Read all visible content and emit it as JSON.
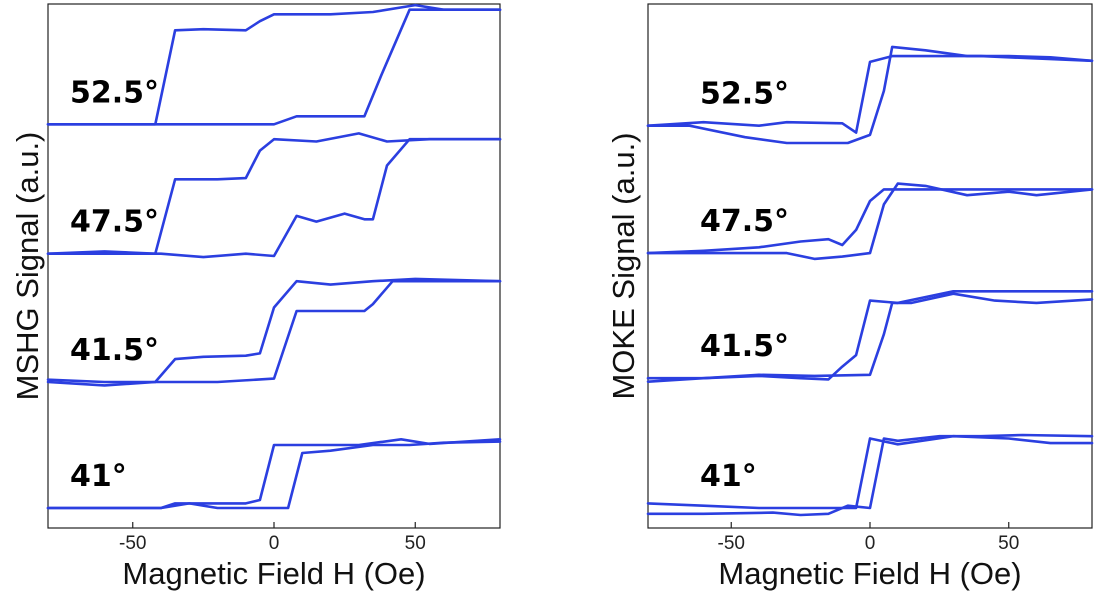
{
  "colors": {
    "trace": "#2b3fe0",
    "frame": "#222222"
  },
  "chart_data": [
    {
      "type": "line",
      "name": "mshg-panel",
      "xlabel": "Magnetic Field H (Oe)",
      "ylabel": "MSHG Signal (a.u.)",
      "xlim": [
        -80,
        80
      ],
      "ylim": [
        0,
        4.4
      ],
      "xticks": [
        -50,
        0,
        50
      ],
      "xtick_labels": [
        "-50",
        "0",
        "50"
      ],
      "yticks_shown": false,
      "grid": false,
      "series": [
        {
          "name": "52.5°",
          "offset": 3.35,
          "branches": [
            [
              [
                -80,
                0.0
              ],
              [
                -55,
                0.0
              ],
              [
                -42,
                0.0
              ],
              [
                -35,
                0.82
              ],
              [
                -25,
                0.83
              ],
              [
                -10,
                0.82
              ],
              [
                -5,
                0.9
              ],
              [
                0,
                0.96
              ],
              [
                20,
                0.96
              ],
              [
                35,
                0.98
              ],
              [
                50,
                1.04
              ],
              [
                60,
                1.0
              ],
              [
                80,
                1.0
              ]
            ],
            [
              [
                -80,
                0.0
              ],
              [
                -42,
                0.0
              ],
              [
                -20,
                0.0
              ],
              [
                0,
                0.0
              ],
              [
                8,
                0.07
              ],
              [
                20,
                0.07
              ],
              [
                32,
                0.07
              ],
              [
                38,
                0.43
              ],
              [
                48,
                1.0
              ],
              [
                80,
                1.0
              ]
            ]
          ]
        },
        {
          "name": "47.5°",
          "offset": 2.22,
          "branches": [
            [
              [
                -80,
                0.0
              ],
              [
                -60,
                0.02
              ],
              [
                -42,
                0.0
              ],
              [
                -35,
                0.65
              ],
              [
                -20,
                0.65
              ],
              [
                -10,
                0.66
              ],
              [
                -5,
                0.9
              ],
              [
                0,
                1.0
              ],
              [
                15,
                0.98
              ],
              [
                30,
                1.05
              ],
              [
                40,
                0.98
              ],
              [
                55,
                1.0
              ],
              [
                80,
                1.0
              ]
            ],
            [
              [
                -80,
                0.0
              ],
              [
                -55,
                0.0
              ],
              [
                -40,
                0.0
              ],
              [
                -25,
                -0.03
              ],
              [
                -10,
                0.0
              ],
              [
                0,
                -0.02
              ],
              [
                8,
                0.33
              ],
              [
                15,
                0.28
              ],
              [
                25,
                0.35
              ],
              [
                32,
                0.3
              ],
              [
                35,
                0.3
              ],
              [
                40,
                0.77
              ],
              [
                48,
                1.0
              ],
              [
                80,
                1.0
              ]
            ]
          ]
        },
        {
          "name": "41.5°",
          "offset": 1.1,
          "branches": [
            [
              [
                -80,
                0.0
              ],
              [
                -60,
                -0.03
              ],
              [
                -42,
                0.0
              ],
              [
                -35,
                0.2
              ],
              [
                -25,
                0.22
              ],
              [
                -10,
                0.23
              ],
              [
                -5,
                0.25
              ],
              [
                0,
                0.65
              ],
              [
                8,
                0.88
              ],
              [
                20,
                0.85
              ],
              [
                35,
                0.88
              ],
              [
                50,
                0.9
              ],
              [
                80,
                0.88
              ]
            ],
            [
              [
                -80,
                0.02
              ],
              [
                -60,
                0.0
              ],
              [
                -40,
                0.0
              ],
              [
                -20,
                0.0
              ],
              [
                0,
                0.03
              ],
              [
                8,
                0.62
              ],
              [
                20,
                0.62
              ],
              [
                32,
                0.62
              ],
              [
                35,
                0.68
              ],
              [
                42,
                0.88
              ],
              [
                80,
                0.88
              ]
            ]
          ]
        },
        {
          "name": "41°",
          "offset": 0.0,
          "branches": [
            [
              [
                -80,
                0.0
              ],
              [
                -55,
                0.0
              ],
              [
                -40,
                0.0
              ],
              [
                -35,
                0.04
              ],
              [
                -25,
                0.04
              ],
              [
                -10,
                0.04
              ],
              [
                -5,
                0.07
              ],
              [
                0,
                0.55
              ],
              [
                10,
                0.55
              ],
              [
                30,
                0.55
              ],
              [
                45,
                0.6
              ],
              [
                55,
                0.56
              ],
              [
                80,
                0.6
              ]
            ],
            [
              [
                -80,
                0.0
              ],
              [
                -50,
                0.0
              ],
              [
                -40,
                0.0
              ],
              [
                -30,
                0.04
              ],
              [
                -20,
                0.0
              ],
              [
                0,
                0.0
              ],
              [
                5,
                0.0
              ],
              [
                10,
                0.48
              ],
              [
                20,
                0.5
              ],
              [
                35,
                0.55
              ],
              [
                48,
                0.55
              ],
              [
                60,
                0.57
              ],
              [
                80,
                0.58
              ]
            ]
          ]
        }
      ]
    },
    {
      "type": "line",
      "name": "moke-panel",
      "xlabel": "Magnetic Field H (Oe)",
      "ylabel": "MOKE Signal (a.u.)",
      "xlim": [
        -80,
        80
      ],
      "ylim": [
        0,
        4.35
      ],
      "xticks": [
        -50,
        0,
        50
      ],
      "xtick_labels": [
        "-50",
        "0",
        "50"
      ],
      "yticks_shown": false,
      "grid": false,
      "series": [
        {
          "name": "52.5°",
          "offset": 3.3,
          "branches": [
            [
              [
                -80,
                0.0
              ],
              [
                -60,
                0.03
              ],
              [
                -40,
                0.0
              ],
              [
                -30,
                0.03
              ],
              [
                -10,
                0.02
              ],
              [
                -5,
                -0.06
              ],
              [
                0,
                0.55
              ],
              [
                8,
                0.6
              ],
              [
                20,
                0.6
              ],
              [
                40,
                0.6
              ],
              [
                60,
                0.58
              ],
              [
                80,
                0.56
              ]
            ],
            [
              [
                -80,
                0.0
              ],
              [
                -65,
                0.0
              ],
              [
                -45,
                -0.1
              ],
              [
                -30,
                -0.15
              ],
              [
                -20,
                -0.15
              ],
              [
                -8,
                -0.15
              ],
              [
                0,
                -0.08
              ],
              [
                5,
                0.3
              ],
              [
                8,
                0.68
              ],
              [
                20,
                0.65
              ],
              [
                35,
                0.6
              ],
              [
                50,
                0.6
              ],
              [
                65,
                0.59
              ],
              [
                80,
                0.56
              ]
            ]
          ]
        },
        {
          "name": "47.5°",
          "offset": 2.2,
          "branches": [
            [
              [
                -80,
                0.0
              ],
              [
                -60,
                0.02
              ],
              [
                -40,
                0.05
              ],
              [
                -25,
                0.1
              ],
              [
                -15,
                0.12
              ],
              [
                -10,
                0.07
              ],
              [
                -5,
                0.2
              ],
              [
                0,
                0.45
              ],
              [
                5,
                0.55
              ],
              [
                20,
                0.55
              ],
              [
                40,
                0.55
              ],
              [
                60,
                0.55
              ],
              [
                80,
                0.55
              ]
            ],
            [
              [
                -80,
                0.0
              ],
              [
                -60,
                0.0
              ],
              [
                -45,
                0.0
              ],
              [
                -30,
                0.0
              ],
              [
                -20,
                -0.05
              ],
              [
                -10,
                -0.03
              ],
              [
                0,
                0.0
              ],
              [
                5,
                0.42
              ],
              [
                10,
                0.6
              ],
              [
                20,
                0.58
              ],
              [
                35,
                0.5
              ],
              [
                50,
                0.53
              ],
              [
                60,
                0.5
              ],
              [
                80,
                0.55
              ]
            ]
          ]
        },
        {
          "name": "41.5°",
          "offset": 1.12,
          "branches": [
            [
              [
                -80,
                -0.03
              ],
              [
                -60,
                0.0
              ],
              [
                -40,
                0.02
              ],
              [
                -25,
                0.0
              ],
              [
                -15,
                -0.01
              ],
              [
                -10,
                0.1
              ],
              [
                -5,
                0.2
              ],
              [
                0,
                0.67
              ],
              [
                10,
                0.65
              ],
              [
                30,
                0.75
              ],
              [
                50,
                0.75
              ],
              [
                80,
                0.75
              ]
            ],
            [
              [
                -80,
                0.0
              ],
              [
                -60,
                0.0
              ],
              [
                -40,
                0.03
              ],
              [
                -20,
                0.02
              ],
              [
                0,
                0.03
              ],
              [
                5,
                0.38
              ],
              [
                8,
                0.65
              ],
              [
                15,
                0.65
              ],
              [
                30,
                0.73
              ],
              [
                45,
                0.67
              ],
              [
                60,
                0.65
              ],
              [
                80,
                0.68
              ]
            ]
          ]
        },
        {
          "name": "41°",
          "offset": 0.0,
          "branches": [
            [
              [
                -80,
                0.04
              ],
              [
                -60,
                0.02
              ],
              [
                -40,
                0.0
              ],
              [
                -20,
                0.0
              ],
              [
                -10,
                0.0
              ],
              [
                -5,
                0.0
              ],
              [
                0,
                0.6
              ],
              [
                10,
                0.55
              ],
              [
                30,
                0.62
              ],
              [
                50,
                0.6
              ],
              [
                65,
                0.56
              ],
              [
                80,
                0.56
              ]
            ],
            [
              [
                -80,
                -0.05
              ],
              [
                -60,
                -0.05
              ],
              [
                -35,
                -0.04
              ],
              [
                -25,
                -0.06
              ],
              [
                -15,
                -0.05
              ],
              [
                -8,
                0.02
              ],
              [
                0,
                0.0
              ],
              [
                5,
                0.6
              ],
              [
                10,
                0.58
              ],
              [
                25,
                0.62
              ],
              [
                40,
                0.62
              ],
              [
                55,
                0.63
              ],
              [
                80,
                0.62
              ]
            ]
          ]
        }
      ]
    }
  ]
}
